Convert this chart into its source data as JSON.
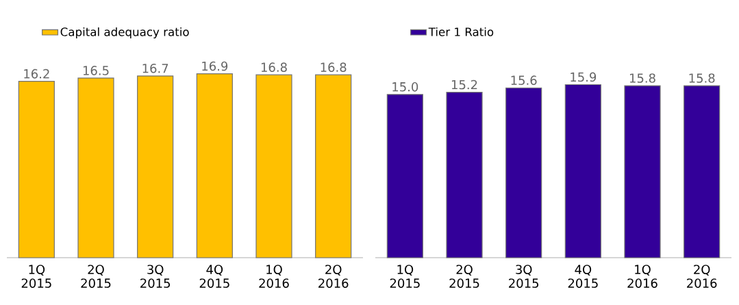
{
  "chart_data": [
    {
      "type": "bar",
      "categories": [
        "1Q 2015",
        "2Q 2015",
        "3Q 2015",
        "4Q 2015",
        "1Q 2016",
        "2Q 2016"
      ],
      "series": [
        {
          "name": "Capital adequacy ratio",
          "color": "#ffc000",
          "values": [
            16.2,
            16.5,
            16.7,
            16.9,
            16.8,
            16.8
          ],
          "value_labels": [
            "16.2",
            "16.5",
            "16.7",
            "16.9",
            "16.8",
            "16.8"
          ]
        }
      ],
      "legend": "top"
    },
    {
      "type": "bar",
      "categories": [
        "1Q 2015",
        "2Q 2015",
        "3Q 2015",
        "4Q 2015",
        "1Q 2016",
        "2Q 2016"
      ],
      "series": [
        {
          "name": "Tier 1 Ratio",
          "color": "#330099",
          "values": [
            15.0,
            15.2,
            15.6,
            15.9,
            15.8,
            15.8
          ],
          "value_labels": [
            "15.0",
            "15.2",
            "15.6",
            "15.9",
            "15.8",
            "15.8"
          ]
        }
      ],
      "legend": "top"
    }
  ]
}
